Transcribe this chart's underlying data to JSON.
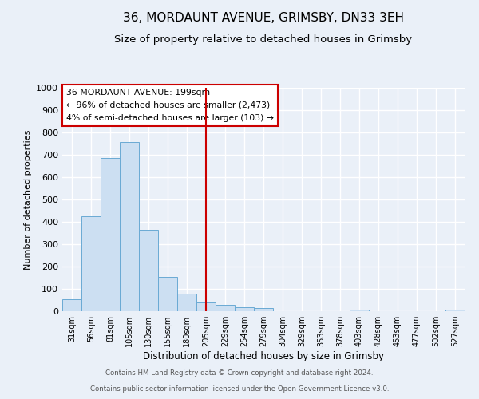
{
  "title": "36, MORDAUNT AVENUE, GRIMSBY, DN33 3EH",
  "subtitle": "Size of property relative to detached houses in Grimsby",
  "xlabel": "Distribution of detached houses by size in Grimsby",
  "ylabel": "Number of detached properties",
  "bar_labels": [
    "31sqm",
    "56sqm",
    "81sqm",
    "105sqm",
    "130sqm",
    "155sqm",
    "180sqm",
    "205sqm",
    "229sqm",
    "254sqm",
    "279sqm",
    "304sqm",
    "329sqm",
    "353sqm",
    "378sqm",
    "403sqm",
    "428sqm",
    "453sqm",
    "477sqm",
    "502sqm",
    "527sqm"
  ],
  "bar_heights": [
    55,
    425,
    685,
    757,
    365,
    153,
    78,
    40,
    30,
    17,
    13,
    0,
    0,
    0,
    0,
    8,
    0,
    0,
    0,
    0,
    8
  ],
  "bar_color": "#ccdff2",
  "bar_edge_color": "#6aaad4",
  "vline_x_index": 7,
  "vline_color": "#cc0000",
  "ylim": [
    0,
    1000
  ],
  "yticks": [
    0,
    100,
    200,
    300,
    400,
    500,
    600,
    700,
    800,
    900,
    1000
  ],
  "annotation_title": "36 MORDAUNT AVENUE: 199sqm",
  "annotation_line1": "← 96% of detached houses are smaller (2,473)",
  "annotation_line2": "4% of semi-detached houses are larger (103) →",
  "annotation_box_color": "#ffffff",
  "annotation_box_edge": "#cc0000",
  "footer_line1": "Contains HM Land Registry data © Crown copyright and database right 2024.",
  "footer_line2": "Contains public sector information licensed under the Open Government Licence v3.0.",
  "background_color": "#eaf0f8",
  "grid_color": "#ffffff",
  "title_fontsize": 11,
  "subtitle_fontsize": 9.5
}
